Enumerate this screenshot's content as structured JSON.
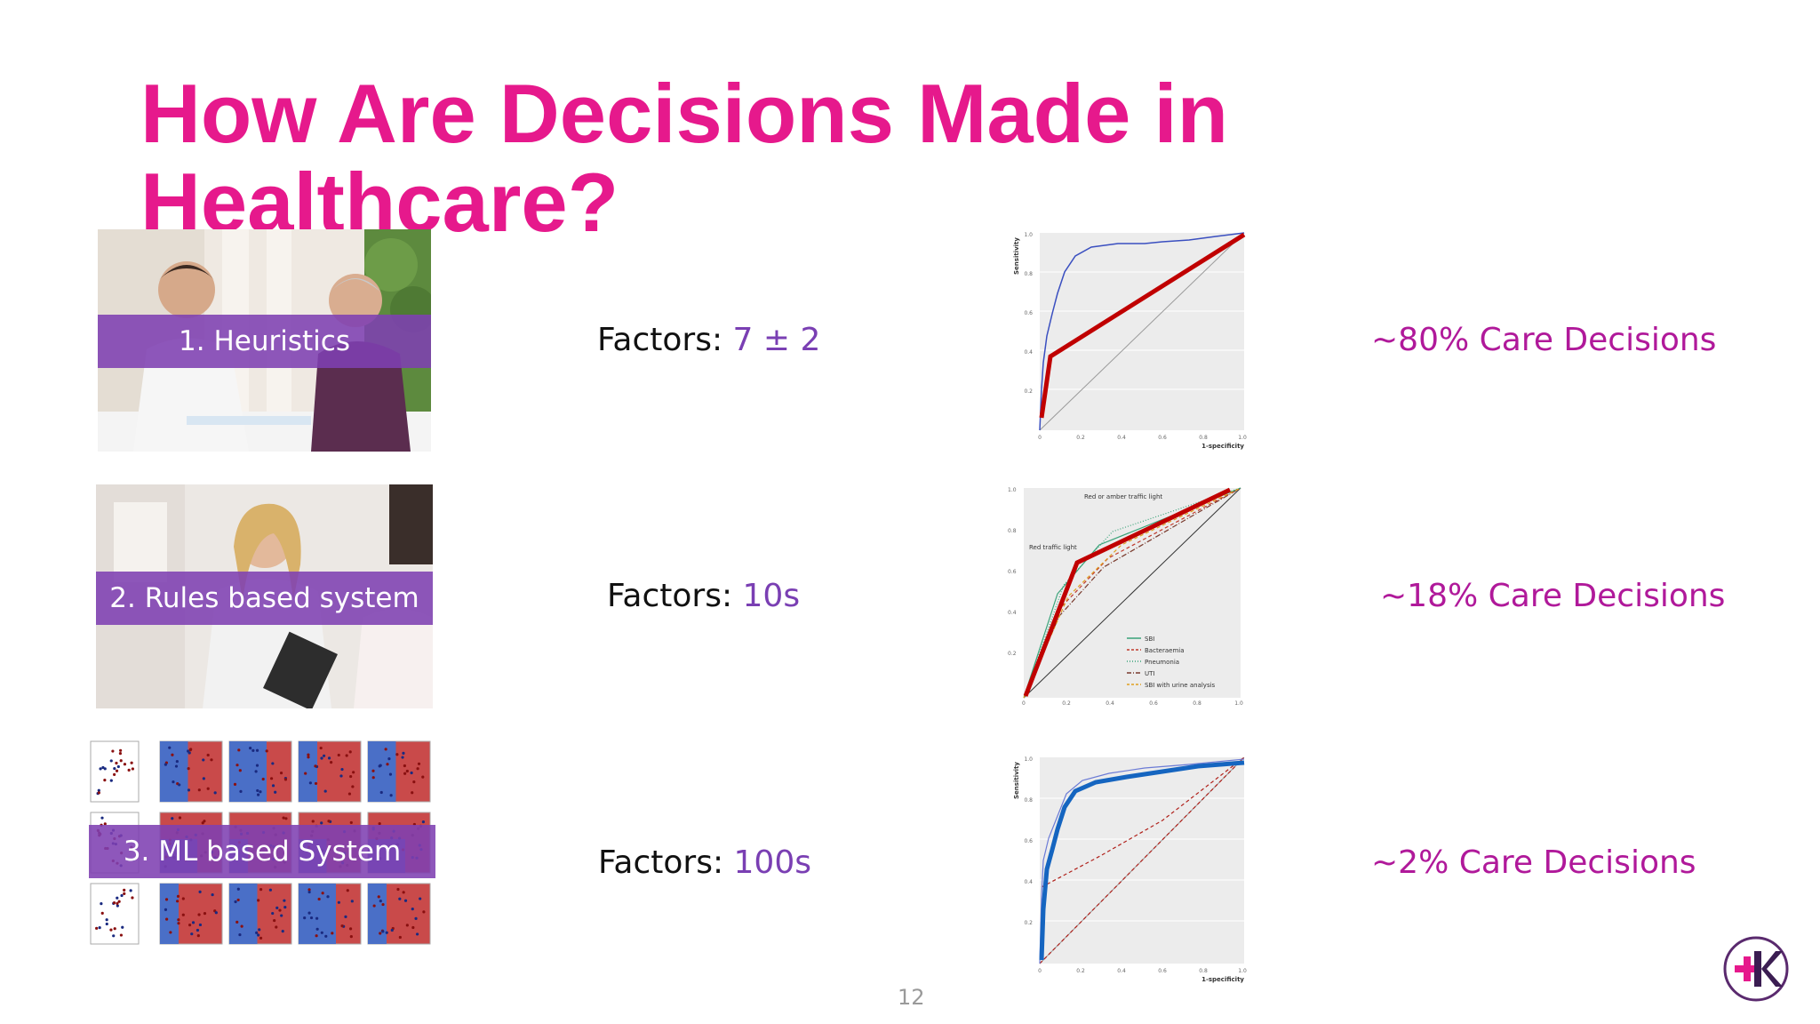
{
  "slide": {
    "title": "How Are Decisions Made in Healthcare?",
    "page_number": "12",
    "logo_icon": "plus-k-logo-icon"
  },
  "rows": [
    {
      "label": "1. Heuristics",
      "factors_prefix": "Factors: ",
      "factors_value": "7 ± 2",
      "care": "~80% Care Decisions",
      "image_icon": "doctor-consultation-photo-icon"
    },
    {
      "label": "2. Rules based system",
      "factors_prefix": "Factors: ",
      "factors_value": "10s",
      "care": "~18% Care Decisions",
      "image_icon": "nurse-clipboard-photo-icon"
    },
    {
      "label": "3. ML based System",
      "factors_prefix": "Factors: ",
      "factors_value": "100s",
      "care": "~2% Care Decisions",
      "image_icon": "ml-classifier-grid-icon"
    }
  ],
  "charts": {
    "roc1": {
      "ylabel": "Sensitivity",
      "xlabel": "1-specificity",
      "yticks": [
        "1.0",
        "0.8",
        "0.6",
        "0.4",
        "0.2"
      ],
      "xticks": [
        "0",
        "0.2",
        "0.4",
        "0.6",
        "0.8",
        "1.0"
      ],
      "highlight_color": "#c00000"
    },
    "roc2": {
      "annotation_top": "Red or amber traffic light",
      "annotation_mid": "Red traffic light",
      "yticks": [
        "1.0",
        "0.8",
        "0.6",
        "0.4",
        "0.2",
        "0"
      ],
      "xticks": [
        "0.2",
        "0.4",
        "0.6",
        "0.8",
        "1.0"
      ],
      "legend": [
        {
          "name": "SBI",
          "color": "#3aa37a",
          "dash": "solid"
        },
        {
          "name": "Bacteraemia",
          "color": "#c0392b",
          "dash": "dashed"
        },
        {
          "name": "Pneumonia",
          "color": "#3aa37a",
          "dash": "dotted"
        },
        {
          "name": "UTI",
          "color": "#7a3b2e",
          "dash": "dashdot"
        },
        {
          "name": "SBI with urine analysis",
          "color": "#e0a020",
          "dash": "dashed"
        }
      ],
      "highlight_color": "#c00000"
    },
    "roc3": {
      "ylabel": "Sensitivity",
      "xlabel": "1-specificity",
      "yticks": [
        "1.0",
        "0.8",
        "0.6",
        "0.4",
        "0.2"
      ],
      "xticks": [
        "0",
        "0.2",
        "0.4",
        "0.6",
        "0.8",
        "1.0"
      ],
      "highlight_color": "#1565c0"
    }
  }
}
